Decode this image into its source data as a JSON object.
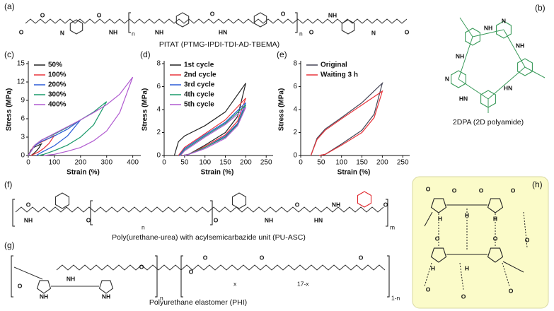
{
  "panels": {
    "a": {
      "label": "(a)",
      "caption": "PITAT (PTMG-IPDI-TDI-AD-TBEMA)"
    },
    "b": {
      "label": "(b)",
      "caption": "2DPA (2D polyamide)"
    },
    "f": {
      "label": "(f)",
      "caption": "Poly(urethane-urea) with acylsemicarbazide unit (PU-ASC)"
    },
    "g": {
      "label": "(g)",
      "caption": "Polyurethane elastomer (PHI)"
    },
    "h": {
      "label": "(h)"
    }
  },
  "atom_labels": [
    "O",
    "N",
    "H",
    "NH",
    "HN"
  ],
  "subscripts": [
    "n",
    "m",
    "x",
    "17-x",
    "1-n"
  ],
  "chart_data": [
    {
      "type": "line",
      "label": "(c)",
      "xlabel": "Strain (%)",
      "ylabel": "Stress (MPa)",
      "xlim": [
        0,
        420
      ],
      "xticks": [
        0,
        100,
        200,
        300,
        400
      ],
      "ylim": [
        0,
        15
      ],
      "yticks": [
        0,
        3,
        6,
        9,
        12,
        15
      ],
      "legend": "upper left",
      "series": [
        {
          "name": "50%",
          "color": "#222222",
          "x": [
            0,
            10,
            20,
            30,
            40,
            50,
            40,
            30,
            20,
            10
          ],
          "values": [
            0,
            0.9,
            1.3,
            1.5,
            1.7,
            1.9,
            1.2,
            0.7,
            0.3,
            0
          ]
        },
        {
          "name": "100%",
          "color": "#e8343a",
          "x": [
            0,
            20,
            40,
            60,
            80,
            100,
            80,
            60,
            40,
            20,
            10
          ],
          "values": [
            0,
            1.5,
            2.0,
            2.4,
            2.8,
            3.3,
            2.0,
            1.2,
            0.6,
            0.2,
            0
          ]
        },
        {
          "name": "200%",
          "color": "#2a5bd7",
          "x": [
            0,
            25,
            50,
            100,
            150,
            200,
            150,
            100,
            50,
            30
          ],
          "values": [
            0,
            1.6,
            2.3,
            3.2,
            4.3,
            5.8,
            3.2,
            1.6,
            0.5,
            0
          ]
        },
        {
          "name": "300%",
          "color": "#1a9a6a",
          "x": [
            0,
            25,
            50,
            100,
            150,
            200,
            250,
            300,
            250,
            200,
            150,
            100,
            60,
            40
          ],
          "values": [
            0,
            1.7,
            2.5,
            3.5,
            4.6,
            5.8,
            7.1,
            8.8,
            5.0,
            3.0,
            1.7,
            0.8,
            0.2,
            0
          ]
        },
        {
          "name": "400%",
          "color": "#b05ad0",
          "x": [
            0,
            25,
            50,
            100,
            150,
            200,
            250,
            300,
            350,
            400,
            350,
            300,
            250,
            200,
            150,
            100,
            60
          ],
          "values": [
            0,
            1.7,
            2.5,
            3.6,
            4.7,
            5.8,
            7.0,
            8.3,
            10.0,
            12.8,
            7.0,
            4.0,
            2.4,
            1.3,
            0.7,
            0.2,
            0
          ]
        }
      ]
    },
    {
      "type": "line",
      "label": "(d)",
      "xlabel": "Strain (%)",
      "ylabel": "Stress (MPa)",
      "xlim": [
        0,
        260
      ],
      "xticks": [
        0,
        50,
        100,
        150,
        200,
        250
      ],
      "ylim": [
        0,
        8
      ],
      "yticks": [
        0,
        2,
        4,
        6,
        8
      ],
      "legend": "upper left",
      "series": [
        {
          "name": "1st cycle",
          "color": "#222222",
          "x": [
            25,
            35,
            50,
            100,
            150,
            200,
            180,
            150,
            100,
            60,
            45
          ],
          "values": [
            0,
            1.2,
            1.7,
            2.6,
            3.8,
            6.3,
            3.4,
            2.0,
            0.9,
            0.1,
            0
          ]
        },
        {
          "name": "2nd cycle",
          "color": "#e8343a",
          "x": [
            35,
            50,
            100,
            150,
            200,
            180,
            150,
            100,
            60,
            45
          ],
          "values": [
            0,
            0.7,
            1.9,
            3.1,
            5.0,
            3.0,
            1.8,
            0.8,
            0.1,
            0
          ]
        },
        {
          "name": "3rd cycle",
          "color": "#2a5bd7",
          "x": [
            37,
            50,
            100,
            150,
            200,
            180,
            150,
            100,
            60,
            47
          ],
          "values": [
            0,
            0.6,
            1.8,
            2.9,
            4.6,
            2.8,
            1.7,
            0.7,
            0.1,
            0
          ]
        },
        {
          "name": "4th cycle",
          "color": "#1a9a6a",
          "x": [
            39,
            50,
            100,
            150,
            200,
            180,
            150,
            100,
            60,
            48
          ],
          "values": [
            0,
            0.5,
            1.7,
            2.8,
            4.4,
            2.7,
            1.6,
            0.7,
            0.1,
            0
          ]
        },
        {
          "name": "5th cycle",
          "color": "#b05ad0",
          "x": [
            40,
            50,
            100,
            150,
            200,
            180,
            150,
            100,
            60,
            49
          ],
          "values": [
            0,
            0.4,
            1.6,
            2.7,
            4.2,
            2.6,
            1.5,
            0.6,
            0.1,
            0
          ]
        }
      ]
    },
    {
      "type": "line",
      "label": "(e)",
      "xlabel": "Strain (%)",
      "ylabel": "Stress (MPa)",
      "xlim": [
        0,
        260
      ],
      "xticks": [
        0,
        50,
        100,
        150,
        200,
        250
      ],
      "ylim": [
        0,
        8
      ],
      "yticks": [
        0,
        2,
        4,
        6,
        8
      ],
      "legend": "upper left",
      "series": [
        {
          "name": "Original",
          "color": "#444455",
          "x": [
            25,
            40,
            60,
            100,
            150,
            200,
            180,
            150,
            100,
            60,
            45
          ],
          "values": [
            0,
            1.5,
            2.3,
            3.3,
            4.6,
            6.3,
            3.6,
            2.2,
            1.0,
            0.1,
            0
          ]
        },
        {
          "name": "Waiting 3 h",
          "color": "#e8343a",
          "x": [
            25,
            40,
            60,
            100,
            150,
            200,
            180,
            150,
            100,
            60,
            45
          ],
          "values": [
            0,
            1.4,
            2.2,
            3.2,
            4.4,
            5.6,
            3.3,
            2.0,
            0.9,
            0.1,
            0
          ]
        }
      ]
    }
  ]
}
